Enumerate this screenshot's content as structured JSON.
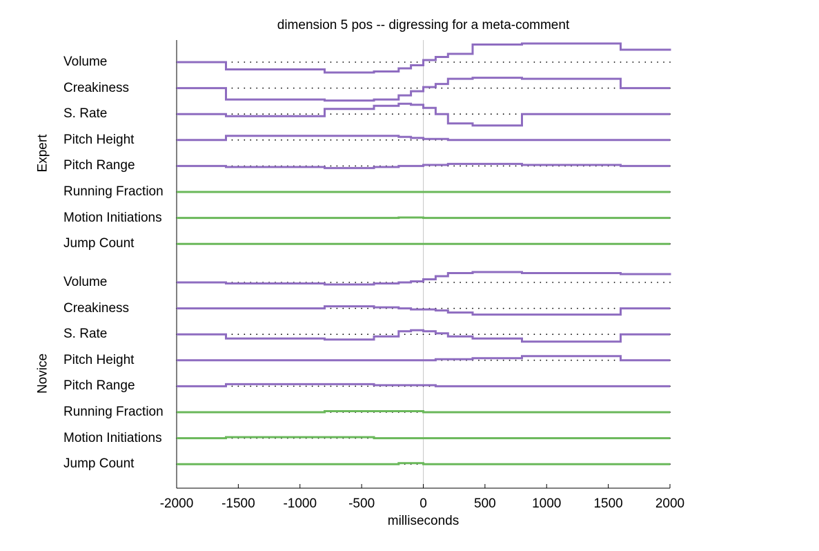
{
  "chart_data": {
    "type": "line",
    "title": "dimension 5 pos -- digressing for a meta-comment",
    "xlabel": "milliseconds",
    "xlim": [
      -2000,
      2000
    ],
    "xticks": [
      -2000,
      -1500,
      -1000,
      -500,
      0,
      500,
      1000,
      1500,
      2000
    ],
    "x_edges": [
      -2000,
      -1600,
      -800,
      -400,
      -200,
      -100,
      0,
      100,
      200,
      400,
      800,
      1600,
      2000
    ],
    "prosodic_color": "#8e6cc0",
    "gaze_color": "#6ab85a",
    "zero_line_color": "#c8c8c8",
    "groups": [
      {
        "label": "Expert",
        "rows": [
          {
            "label": "Volume",
            "kind": "prosodic",
            "values": [
              0,
              -0.35,
              -0.5,
              -0.45,
              -0.3,
              -0.15,
              0.1,
              0.25,
              0.4,
              0.85,
              0.9,
              0.6,
              0.55
            ]
          },
          {
            "label": "Creakiness",
            "kind": "prosodic",
            "values": [
              0,
              -0.55,
              -0.6,
              -0.55,
              -0.35,
              -0.15,
              0.05,
              0.2,
              0.45,
              0.5,
              0.45,
              0,
              0
            ]
          },
          {
            "label": "S. Rate",
            "kind": "prosodic",
            "values": [
              0,
              -0.1,
              0.25,
              0.4,
              0.5,
              0.45,
              0.3,
              0,
              -0.45,
              -0.55,
              0,
              0,
              0
            ]
          },
          {
            "label": "Pitch Height",
            "kind": "prosodic",
            "values": [
              0,
              0.2,
              0.2,
              0.2,
              0.15,
              0.1,
              0.05,
              0.05,
              0,
              0,
              0,
              0,
              0
            ]
          },
          {
            "label": "Pitch Range",
            "kind": "prosodic",
            "values": [
              0,
              -0.05,
              -0.1,
              -0.05,
              0,
              0,
              0.05,
              0.05,
              0.1,
              0.1,
              0.05,
              0,
              0
            ]
          },
          {
            "label": "Running Fraction",
            "kind": "gaze",
            "values": [
              0,
              0,
              0,
              0,
              0,
              0,
              0,
              0,
              0,
              0,
              0,
              0,
              0
            ]
          },
          {
            "label": "Motion Initiations",
            "kind": "gaze",
            "values": [
              0,
              0,
              0,
              0,
              0.02,
              0.02,
              0,
              0,
              0,
              0,
              0,
              0,
              0
            ]
          },
          {
            "label": "Jump Count",
            "kind": "gaze",
            "values": [
              0,
              0,
              0,
              0,
              0,
              0,
              0,
              0,
              0,
              0,
              0,
              0,
              0
            ]
          }
        ]
      },
      {
        "label": "Novice",
        "rows": [
          {
            "label": "Volume",
            "kind": "prosodic",
            "values": [
              0,
              -0.05,
              -0.1,
              -0.05,
              0,
              0.05,
              0.15,
              0.3,
              0.45,
              0.5,
              0.45,
              0.4,
              0.35
            ]
          },
          {
            "label": "Creakiness",
            "kind": "prosodic",
            "values": [
              0,
              0,
              0.1,
              0.05,
              0,
              -0.05,
              -0.05,
              -0.1,
              -0.2,
              -0.3,
              -0.3,
              0,
              0
            ]
          },
          {
            "label": "S. Rate",
            "kind": "prosodic",
            "values": [
              0,
              -0.2,
              -0.25,
              -0.1,
              0.15,
              0.2,
              0.15,
              0.05,
              -0.1,
              -0.2,
              -0.35,
              0,
              0
            ]
          },
          {
            "label": "Pitch Height",
            "kind": "prosodic",
            "values": [
              0,
              0,
              0,
              0,
              0,
              0,
              0,
              0.05,
              0.05,
              0.1,
              0.2,
              0,
              0
            ]
          },
          {
            "label": "Pitch Range",
            "kind": "prosodic",
            "values": [
              0,
              0.1,
              0.1,
              0.05,
              0.05,
              0.05,
              0.05,
              0,
              0,
              0,
              0,
              0,
              0
            ]
          },
          {
            "label": "Running Fraction",
            "kind": "gaze",
            "values": [
              0,
              0,
              0.05,
              0.05,
              0.05,
              0.05,
              0,
              0,
              0,
              0,
              0,
              0,
              0
            ]
          },
          {
            "label": "Motion Initiations",
            "kind": "gaze",
            "values": [
              0,
              0.05,
              0.05,
              0,
              0,
              0,
              0,
              0,
              0,
              0,
              0,
              0,
              0
            ]
          },
          {
            "label": "Jump Count",
            "kind": "gaze",
            "values": [
              0,
              0,
              0,
              0,
              0.05,
              0.05,
              0,
              0,
              0,
              0,
              0,
              0,
              0
            ]
          }
        ]
      }
    ]
  }
}
